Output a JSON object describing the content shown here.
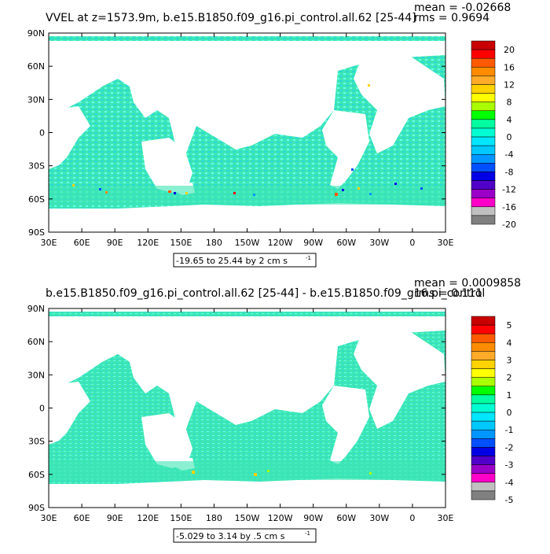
{
  "colors": {
    "land": "#ffffff",
    "ocean_main": "#3ee6b4",
    "ocean_alt": "#28d9d9",
    "ocean_light": "#66ffee"
  },
  "panels": [
    {
      "title": "VVEL at z=1573.9m, b.e15.B1850.f09_g16.pi_control.all.62 [25-44]",
      "mean": "mean = -0.02668",
      "rms": "rms = 0.9694",
      "range_label": "-19.65 to 25.44 by 2 cm s",
      "range_sup": "-1",
      "lat_labels": [
        "90N",
        "60N",
        "30N",
        "0",
        "30S",
        "60S",
        "90S"
      ],
      "lon_labels": [
        "30E",
        "60E",
        "90E",
        "120E",
        "150E",
        "180",
        "150W",
        "120W",
        "90W",
        "60W",
        "30W",
        "0",
        "30E"
      ],
      "colorbar_labels": [
        "20",
        "16",
        "12",
        "8",
        "4",
        "0",
        "-4",
        "-8",
        "-12",
        "-16",
        "-20"
      ],
      "colorbar_colors": [
        "#c80000",
        "#ff0000",
        "#ff5a00",
        "#ff8c00",
        "#ffaa28",
        "#ffd200",
        "#ffff00",
        "#aaff00",
        "#00ff00",
        "#00ffa0",
        "#00ffd2",
        "#00e6ff",
        "#00c8ff",
        "#0096ff",
        "#0050ff",
        "#0000e6",
        "#5000c8",
        "#9b00c8",
        "#ff00c8",
        "#c0c0c0",
        "#808080"
      ]
    },
    {
      "title": "b.e15.B1850.f09_g16.pi_control.all.62 [25-44] - b.e15.B1850.f09_g16.pi_control",
      "mean": "mean = 0.0009858",
      "rms": "rms = 0.111",
      "range_label": "-5.029 to 3.14 by .5 cm s",
      "range_sup": "-1",
      "lat_labels": [
        "90N",
        "60N",
        "30N",
        "0",
        "30S",
        "60S",
        "90S"
      ],
      "lon_labels": [
        "30E",
        "60E",
        "90E",
        "120E",
        "150E",
        "180",
        "150W",
        "120W",
        "90W",
        "60W",
        "30W",
        "0",
        "30E"
      ],
      "colorbar_labels": [
        "5",
        "4",
        "3",
        "2",
        "1",
        "0",
        "-1",
        "-2",
        "-3",
        "-4",
        "-5"
      ],
      "colorbar_colors": [
        "#c80000",
        "#ff0000",
        "#ff5a00",
        "#ff8c00",
        "#ffaa28",
        "#ffd200",
        "#ffff00",
        "#aaff00",
        "#00ff00",
        "#00ffa0",
        "#00ffd2",
        "#00e6ff",
        "#00c8ff",
        "#0096ff",
        "#0050ff",
        "#0000e6",
        "#5000c8",
        "#9b00c8",
        "#ff00c8",
        "#c0c0c0",
        "#808080"
      ]
    }
  ]
}
